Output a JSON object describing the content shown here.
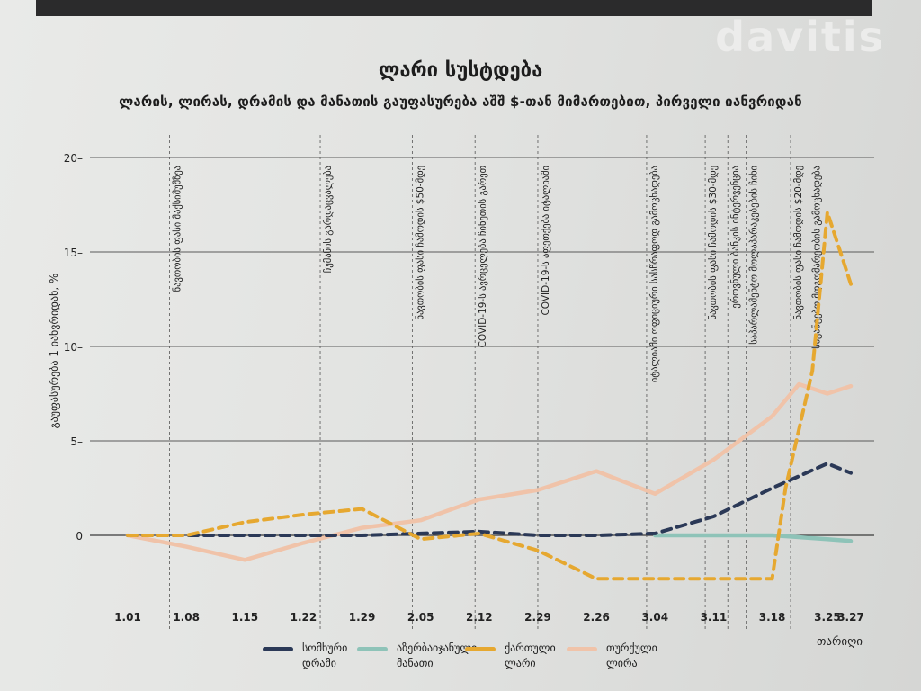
{
  "watermark": "davitis",
  "chart_data": {
    "type": "line",
    "title": "ლარი სუსტდება",
    "subtitle": "ლარის, ლირას, დრამის და მანათის გაუფასურება აშშ $-თან მიმართებით, პირველი იანვრიდან",
    "ylabel": "გაუფასურება 1 იანვრიდან, %",
    "xlabel": "თარიღი",
    "ylim": [
      -5,
      20
    ],
    "yticks": [
      "20",
      "15",
      "10",
      "5",
      "0"
    ],
    "x_ticks": [
      {
        "label": "1.01",
        "x": 0
      },
      {
        "label": "1.08",
        "x": 7
      },
      {
        "label": "1.15",
        "x": 14
      },
      {
        "label": "1.22",
        "x": 21
      },
      {
        "label": "1.29",
        "x": 28
      },
      {
        "label": "2.05",
        "x": 35
      },
      {
        "label": "2.12",
        "x": 42
      },
      {
        "label": "2.29",
        "x": 49
      },
      {
        "label": "2.26",
        "x": 56
      },
      {
        "label": "3.04",
        "x": 63
      },
      {
        "label": "3.11",
        "x": 70
      },
      {
        "label": "3.18",
        "x": 77
      },
      {
        "label": "3.25",
        "x": 83.6
      },
      {
        "label": "3.27",
        "x": 86.4
      }
    ],
    "events": [
      {
        "x": 5,
        "label": "ნავთობის ფასი მაქსიმუმზეა"
      },
      {
        "x": 23,
        "label": "ჩუმანის გარდაცვალება"
      },
      {
        "x": 34,
        "label": "ნავთობის ფასი ჩამოდის $50-მდე"
      },
      {
        "x": 41.5,
        "label": "COVID-19-ს ავრცელება ჩინეთის გარეთ"
      },
      {
        "x": 49,
        "label": "COVID-19-ს აფეთქება იტალიაში"
      },
      {
        "x": 62,
        "label": "იტალიაში ოფიციური სასწრაფოდ გამოცხადება"
      },
      {
        "x": 69,
        "label": "ნავთობის ფასი ჩამოდის $30-მდე"
      },
      {
        "x": 71.7,
        "label": "ეროვნული ბანკის ინტერვენცია"
      },
      {
        "x": 73.9,
        "label": "საპარლამენტო მოლაპარაკებების ჩიხი"
      },
      {
        "x": 79.2,
        "label": "ნავთობის ფასი ჩამოდის $20-მდე"
      },
      {
        "x": 81.4,
        "label": "საგანგებო მდგომარეობის გამოცხადება"
      }
    ],
    "series": [
      {
        "name": "სომხური დრამი",
        "color": "#2b3957",
        "dash": "dashed",
        "x": [
          0,
          7,
          14,
          21,
          28,
          35,
          42,
          49,
          56,
          63,
          70,
          77,
          83.6,
          86.4
        ],
        "y": [
          0,
          0,
          0,
          0,
          0,
          0.1,
          0.2,
          0,
          0,
          0.1,
          1,
          2.5,
          3.8,
          3.3
        ]
      },
      {
        "name": "აზერბაიჯანული მანათი",
        "color": "#8ec3b8",
        "dash": "solid",
        "x": [
          63,
          70,
          77,
          83.6,
          86.4
        ],
        "y": [
          0,
          0,
          0,
          -0.2,
          -0.3
        ]
      },
      {
        "name": "ქართული ლარი",
        "color": "#e6a830",
        "dash": "dashed",
        "x": [
          0,
          7,
          14,
          21,
          28,
          35,
          42,
          49,
          56,
          63,
          70,
          77,
          78.6,
          81.8,
          83.6,
          86.4
        ],
        "y": [
          0,
          0,
          0.7,
          1.1,
          1.4,
          -0.2,
          0.1,
          -0.8,
          -2.3,
          -2.3,
          -2.3,
          -2.3,
          2.5,
          8.7,
          17.1,
          13.3
        ]
      },
      {
        "name": "თურქული ლირა",
        "color": "#f0c3a9",
        "dash": "solid",
        "x": [
          0,
          7,
          14,
          21,
          28,
          35,
          42,
          49,
          56,
          63,
          70,
          77,
          80.2,
          83.6,
          86.4
        ],
        "y": [
          0,
          -0.6,
          -1.3,
          -0.4,
          0.4,
          0.8,
          1.9,
          2.4,
          3.4,
          2.2,
          4,
          6.3,
          8,
          7.5,
          7.9
        ]
      }
    ]
  }
}
